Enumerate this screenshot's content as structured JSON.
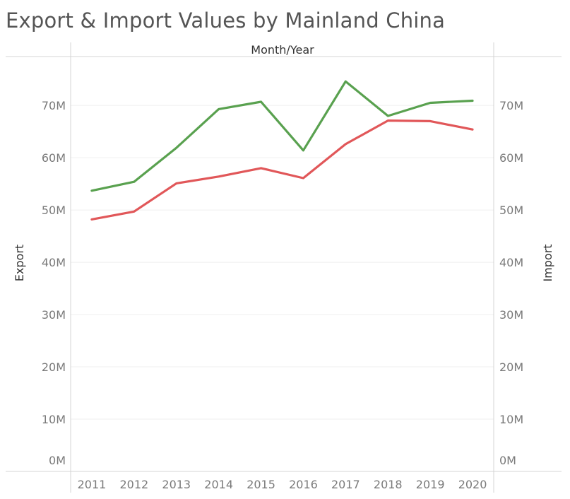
{
  "title": "Export & Import Values by Mainland China",
  "chart_data": {
    "type": "line",
    "title": "Export & Import Values by Mainland China",
    "top_axis_label": "Month/Year",
    "x": [
      "2011",
      "2012",
      "2013",
      "2014",
      "2015",
      "2016",
      "2017",
      "2018",
      "2019",
      "2020"
    ],
    "left_ylabel": "Export",
    "right_ylabel": "Import",
    "ylim": [
      0,
      78000000
    ],
    "yticks": [
      0,
      10000000,
      20000000,
      30000000,
      40000000,
      50000000,
      60000000,
      70000000
    ],
    "ytick_labels": [
      "0M",
      "10M",
      "20M",
      "30M",
      "40M",
      "50M",
      "60M",
      "70M"
    ],
    "grid": true,
    "series": [
      {
        "axis": "left",
        "color": "#59a14f",
        "values": [
          53700000,
          55400000,
          61900000,
          69300000,
          70700000,
          61400000,
          74600000,
          68000000,
          70500000,
          70900000
        ]
      },
      {
        "axis": "right",
        "color": "#e15759",
        "values": [
          48200000,
          49700000,
          55100000,
          56400000,
          58000000,
          56100000,
          62600000,
          67100000,
          67000000,
          65400000
        ]
      }
    ]
  }
}
